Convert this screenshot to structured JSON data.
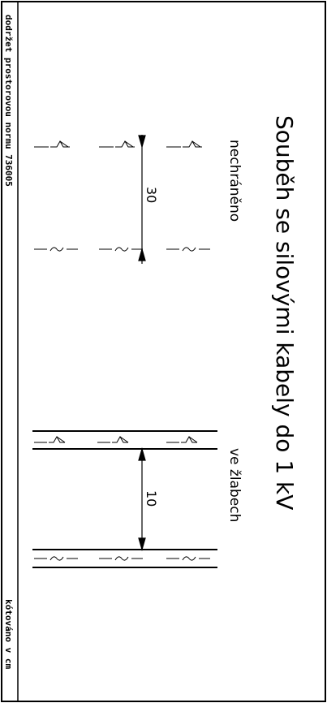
{
  "drawing": {
    "title": "Souběh se silovými kabely do 1 kV",
    "note_top": "dodržet prostorovou normu 736005",
    "note_bottom": "kótováno v cm",
    "section_unprotected": {
      "label": "nechráněno",
      "dimension": "30"
    },
    "section_trough": {
      "label": "ve žlabech",
      "dimension": "10"
    }
  }
}
